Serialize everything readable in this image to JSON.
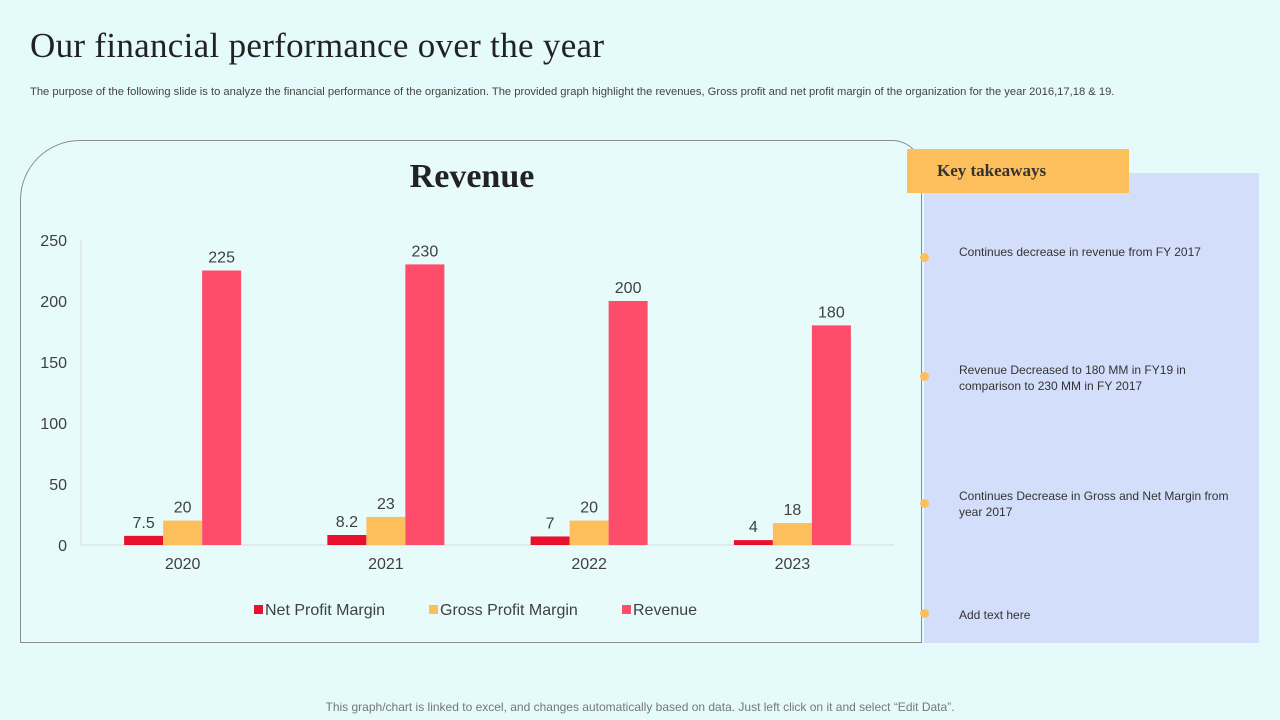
{
  "slide": {
    "title": "Our financial performance over the year",
    "subtitle": "The purpose of the following slide is to analyze the financial performance of the organization. The provided graph highlight the revenues, Gross profit and net profit margin of the organization for the year 2016,17,18 & 19.",
    "footer": "This graph/chart is linked to excel, and changes automatically based on data. Just left click on it and select “Edit Data”."
  },
  "takeaways": {
    "header": "Key takeaways",
    "items": [
      "Continues decrease in revenue  from FY 2017",
      "Revenue  Decreased to 180 MM in FY19 in comparison to 230 MM in FY 2017",
      "Continues Decrease  in Gross and Net Margin from year 2017",
      "Add text here"
    ]
  },
  "colors": {
    "net_profit": "#e8112d",
    "gross_profit": "#fdbf5c",
    "revenue": "#fd4d6b",
    "bullet": "#fdbf5c"
  },
  "chart_data": {
    "type": "bar",
    "title": "Revenue",
    "categories": [
      "2020",
      "2021",
      "2022",
      "2023"
    ],
    "series": [
      {
        "name": "Net Profit Margin",
        "values": [
          7.5,
          8.2,
          7,
          4
        ],
        "labels": [
          "7.5",
          "8.2",
          "7",
          "4"
        ]
      },
      {
        "name": "Gross Profit Margin",
        "values": [
          20,
          23,
          20,
          18
        ],
        "labels": [
          "20",
          "23",
          "20",
          "18"
        ]
      },
      {
        "name": "Revenue",
        "values": [
          225,
          230,
          200,
          180
        ],
        "labels": [
          "225",
          "230",
          "200",
          "180"
        ]
      }
    ],
    "ylim": [
      0,
      250
    ],
    "yticks": [
      "0",
      "50",
      "100",
      "150",
      "200",
      "250"
    ],
    "xlabel": "",
    "ylabel": "",
    "legend": "bottom",
    "grid": false
  }
}
